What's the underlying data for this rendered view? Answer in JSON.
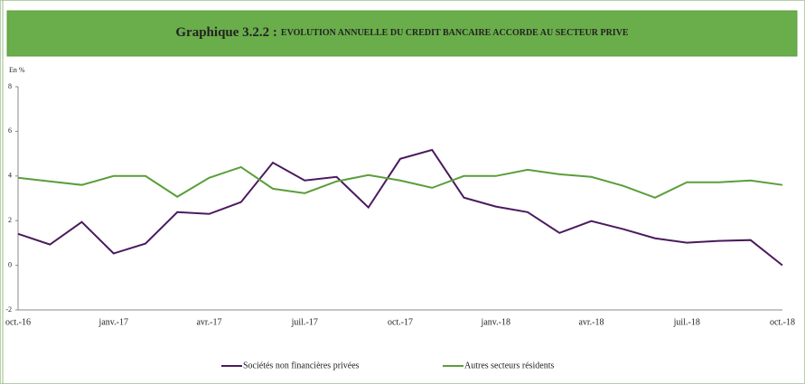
{
  "chart_data": {
    "type": "line",
    "title": "Graphique 3.2.2 :",
    "subtitle": "EVOLUTION ANNUELLE DU CREDIT BANCAIRE ACCORDE AU SECTEUR PRIVE",
    "y_label": "En %",
    "categories": [
      "oct.-16",
      null,
      null,
      "janv.-17",
      null,
      null,
      "avr.-17",
      null,
      null,
      "juil.-17",
      null,
      null,
      "oct.-17",
      null,
      null,
      "janv.-18",
      null,
      null,
      "avr.-18",
      null,
      null,
      "juil.-18",
      null,
      null,
      "oct.-18"
    ],
    "series": [
      {
        "name": "Sociétés non financières privées",
        "color": "#4b1a5e",
        "values": [
          1.41,
          0.93,
          1.94,
          0.53,
          0.97,
          2.38,
          2.3,
          2.83,
          4.6,
          3.8,
          3.96,
          2.59,
          4.77,
          5.17,
          3.03,
          2.63,
          2.38,
          1.45,
          1.98,
          1.62,
          1.21,
          1.01,
          1.09,
          1.13,
          0
        ]
      },
      {
        "name": "Autres secteurs résidents",
        "color": "#5a9e3a",
        "values": [
          3.92,
          3.76,
          3.6,
          4.0,
          4.0,
          3.07,
          3.92,
          4.4,
          3.43,
          3.23,
          3.76,
          4.04,
          3.8,
          3.47,
          4.0,
          4.0,
          4.28,
          4.08,
          3.96,
          3.56,
          3.03,
          3.72,
          3.72,
          3.8,
          3.6
        ]
      }
    ],
    "ylim": [
      -2,
      8
    ],
    "yticks": [
      -2,
      0,
      2,
      4,
      6,
      8
    ],
    "grid": false,
    "legend": "bottom"
  }
}
